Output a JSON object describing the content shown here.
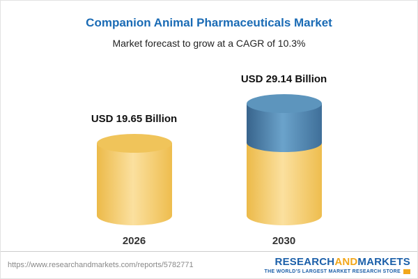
{
  "header": {
    "title": "Companion Animal Pharmaceuticals Market",
    "subtitle": "Market forecast to grow at a CAGR of 10.3%"
  },
  "chart_data": {
    "type": "bar",
    "categories": [
      "2026",
      "2030"
    ],
    "values": [
      19.65,
      29.14
    ],
    "value_labels": [
      "USD 19.65 Billion",
      "USD 29.14 Billion"
    ],
    "unit": "USD Billion",
    "title": "Companion Animal Pharmaceuticals Market",
    "subtitle": "Market forecast to grow at a CAGR of 10.3%",
    "xlabel": "",
    "ylabel": "",
    "legend": "none",
    "grid": false,
    "notes": "2030 bar is stacked: gold base equal to 2026 value plus blue growth segment on top"
  },
  "colors": {
    "title_blue": "#1a6bb5",
    "bar_gold": "#f3c964",
    "bar_blue": "#4a80ab",
    "logo_blue": "#1b5fa9",
    "logo_orange": "#f2a71b"
  },
  "footer": {
    "url": "https://www.researchandmarkets.com/reports/5782771",
    "logo": {
      "research": "RESEARCH",
      "and": "AND",
      "markets": "MARKETS",
      "tagline": "THE WORLD'S LARGEST MARKET RESEARCH STORE"
    }
  }
}
